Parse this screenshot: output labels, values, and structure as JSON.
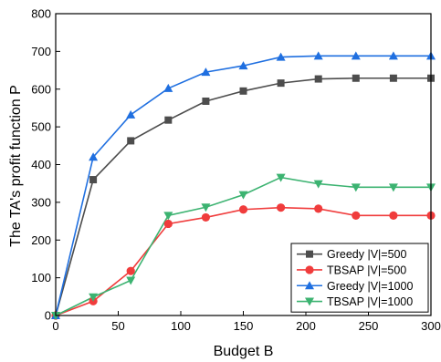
{
  "chart_data": {
    "type": "line",
    "xlabel": "Budget B",
    "ylabel": "The TA's profit function P",
    "xlim": [
      0,
      300
    ],
    "ylim": [
      0,
      800
    ],
    "x_ticks": [
      0,
      50,
      100,
      150,
      200,
      250,
      300
    ],
    "y_ticks": [
      0,
      100,
      200,
      300,
      400,
      500,
      600,
      700,
      800
    ],
    "x": [
      0,
      30,
      60,
      90,
      120,
      150,
      180,
      210,
      240,
      270,
      300
    ],
    "legend_position": "bottom-right",
    "grid": false,
    "series": [
      {
        "name": "Greedy |V|=500",
        "color": "#4d4d4d",
        "marker": "square",
        "values": [
          0,
          360,
          463,
          518,
          568,
          595,
          616,
          627,
          629,
          629,
          629
        ]
      },
      {
        "name": "TBSAP |V|=500",
        "color": "#f03c3c",
        "marker": "circle",
        "values": [
          0,
          38,
          118,
          243,
          260,
          281,
          286,
          283,
          265,
          265,
          265
        ]
      },
      {
        "name": "Greedy |V|=1000",
        "color": "#1f6fe0",
        "marker": "triangle-up",
        "values": [
          0,
          420,
          532,
          602,
          645,
          662,
          685,
          688,
          688,
          688,
          688
        ]
      },
      {
        "name": "TBSAP |V|=1000",
        "color": "#3cb371",
        "marker": "triangle-down",
        "values": [
          0,
          49,
          93,
          265,
          287,
          320,
          366,
          349,
          340,
          340,
          340
        ]
      }
    ]
  }
}
